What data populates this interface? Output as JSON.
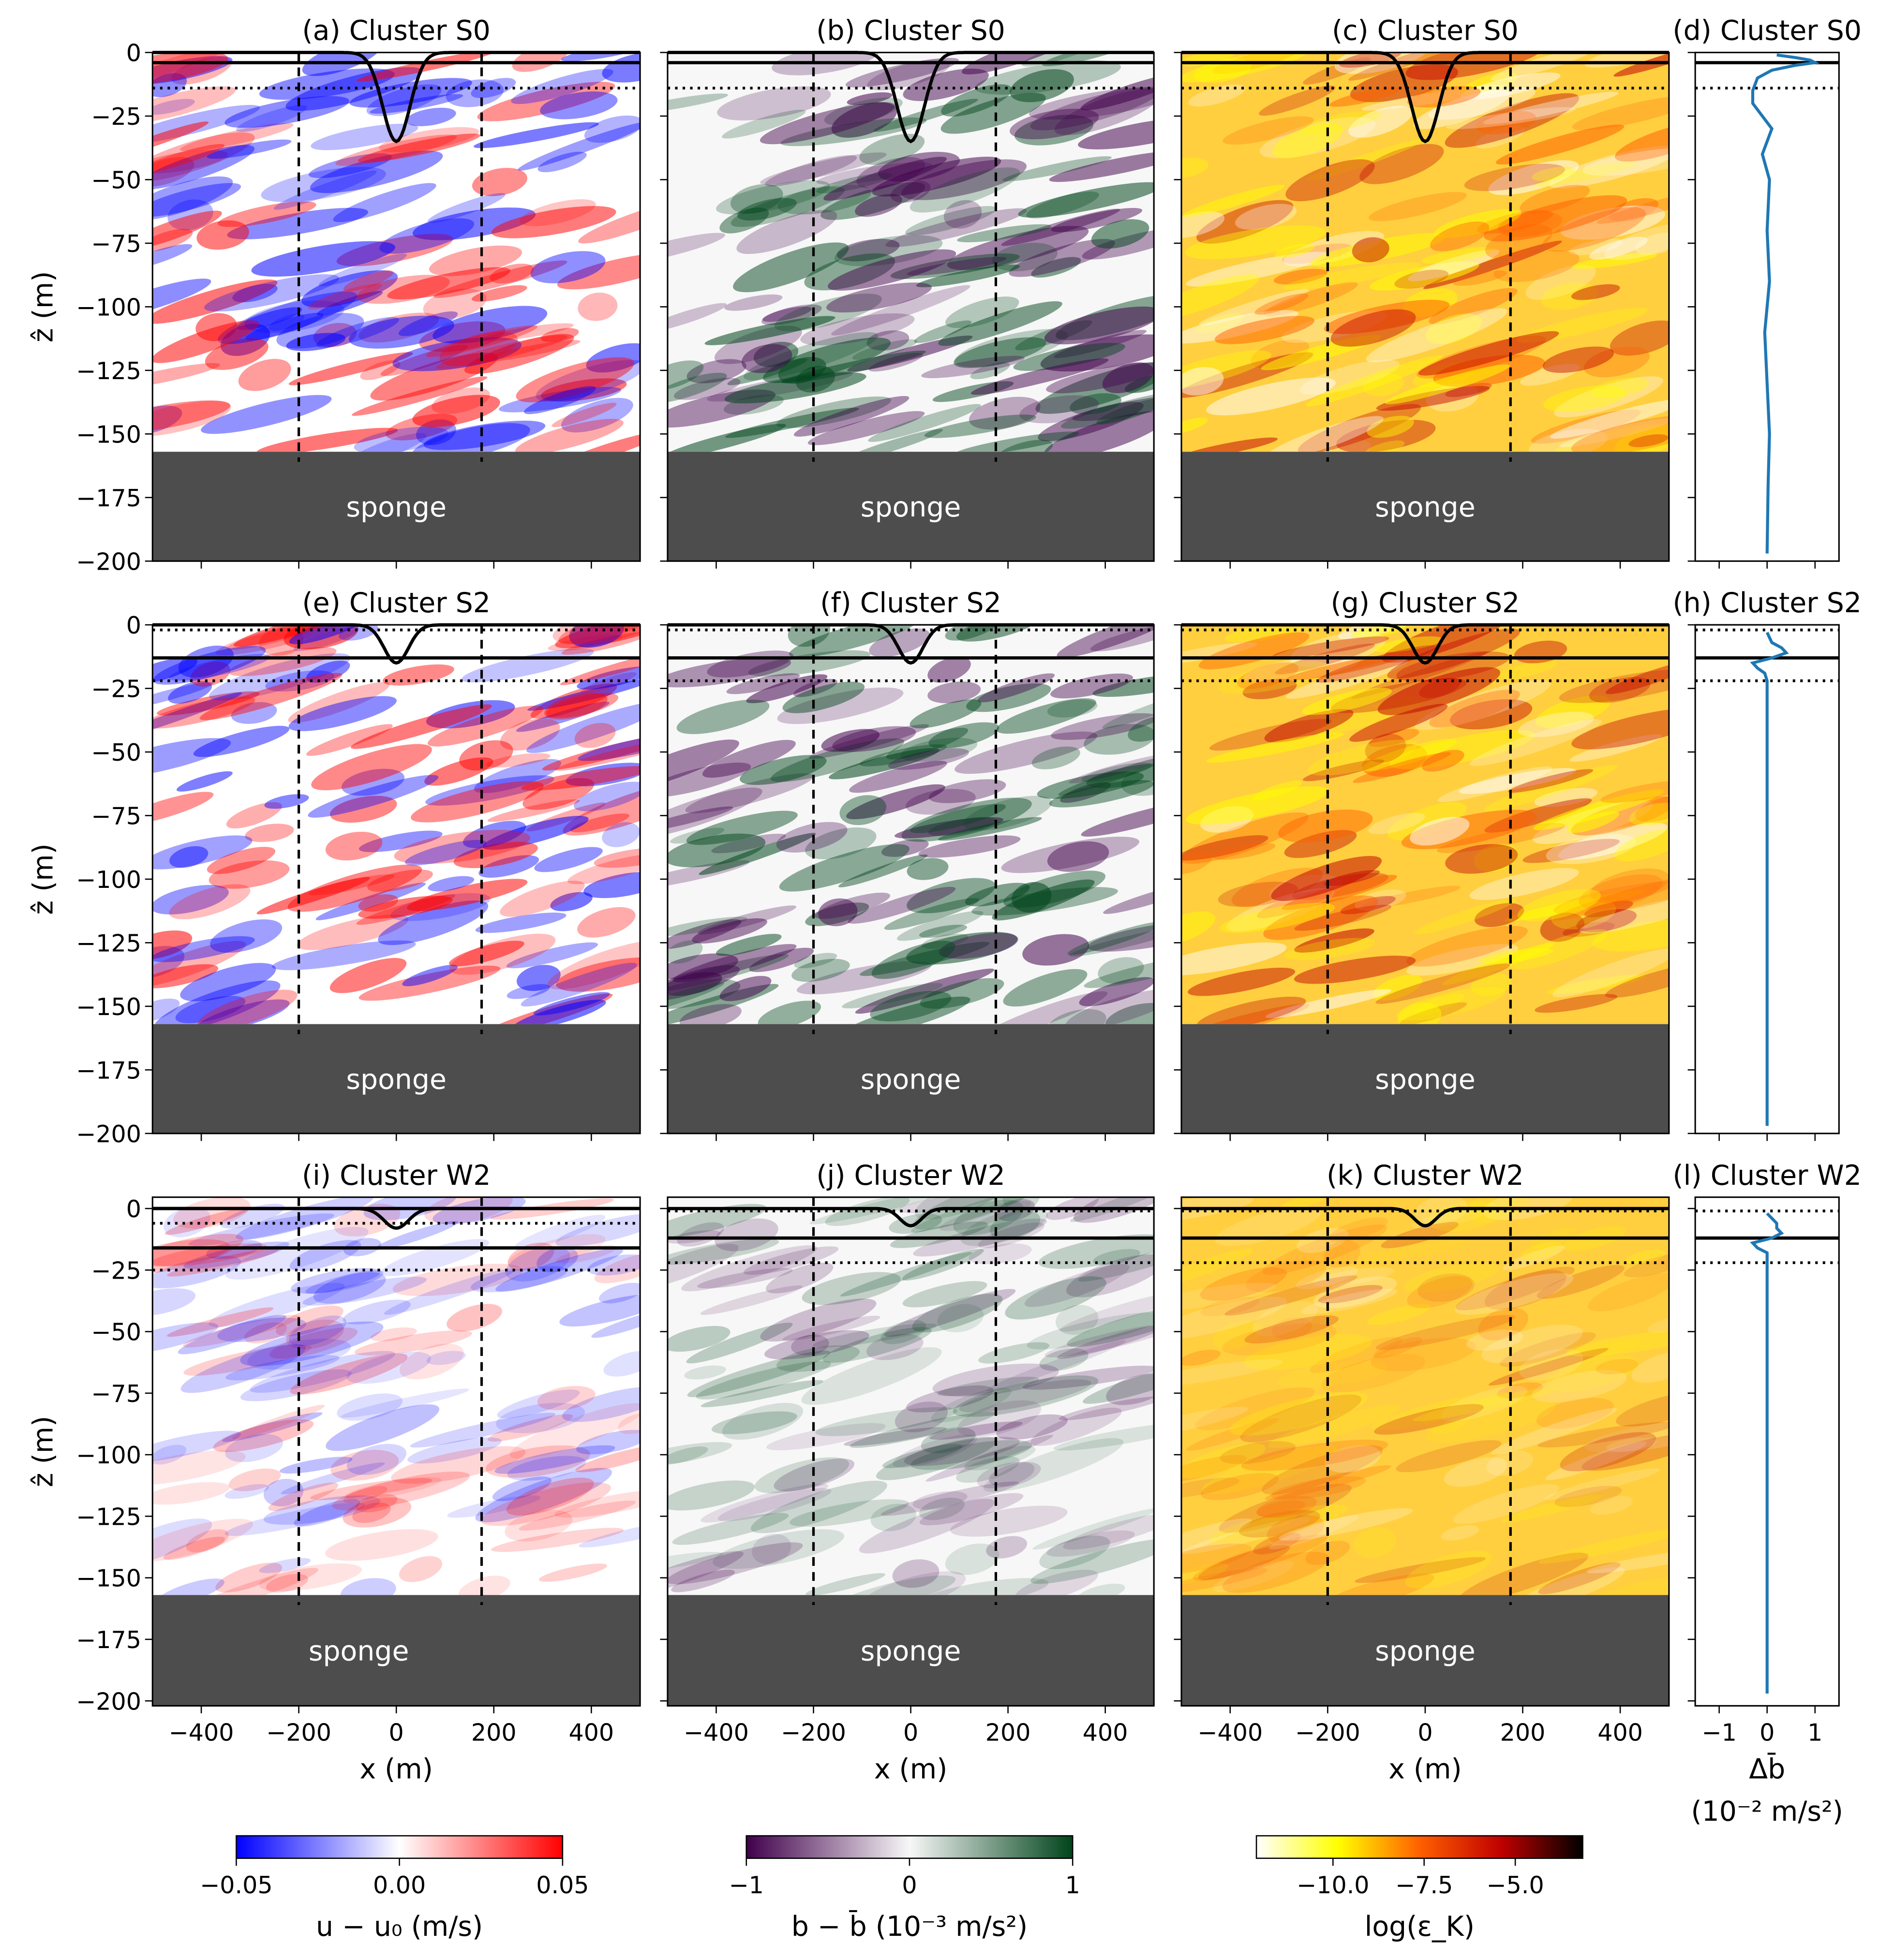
{
  "chart_data": [
    {
      "type": "heatmap",
      "title": "(a) Cluster S0",
      "colors": [
        "#0000ff",
        "#ffffff",
        "#ff0000"
      ],
      "xlim": [
        -500,
        500
      ],
      "ylim": [
        -200,
        0
      ],
      "xticks": [
        -400,
        -200,
        0,
        200,
        400
      ],
      "yticks": [
        0,
        {
          "value": -25,
          "label": "−25"
        },
        {
          "value": -50,
          "label": "−50"
        },
        {
          "value": -75,
          "label": "−75"
        },
        {
          "value": -100,
          "label": "−100"
        },
        {
          "value": -125,
          "label": "−125"
        },
        {
          "value": -150,
          "label": "−150"
        },
        {
          "value": -175,
          "label": "−175"
        },
        {
          "value": -200,
          "label": "−200"
        }
      ],
      "show_xtick_labels": false,
      "show_ytick_labels": true,
      "ylabel": "ẑ (m)",
      "surface": {
        "depth": -35,
        "width": 28,
        "level": 0
      },
      "hlines_solid": [
        -4
      ],
      "hlines_dotted": [
        -14
      ],
      "vlines": [
        -200,
        175
      ],
      "sponge_top": -157,
      "sponge_label": "sponge"
    },
    {
      "type": "heatmap",
      "title": "(b) Cluster S0",
      "colors": [
        "#40004b",
        "#f7f7f7",
        "#00441b"
      ],
      "xlim": [
        -500,
        500
      ],
      "ylim": [
        -200,
        0
      ],
      "xticks": [
        -400,
        -200,
        0,
        200,
        400
      ],
      "yticks": [
        0,
        -25,
        -50,
        -75,
        -100,
        -125,
        -150,
        -175,
        -200
      ],
      "show_xtick_labels": false,
      "show_ytick_labels": false,
      "surface": {
        "depth": -35,
        "width": 28,
        "level": 0
      },
      "hlines_solid": [
        -4
      ],
      "hlines_dotted": [
        -14
      ],
      "vlines": [
        -200,
        175
      ],
      "sponge_top": -157,
      "sponge_label": "sponge"
    },
    {
      "type": "heatmap",
      "title": "(c) Cluster S0",
      "colors": [
        "#ffffff",
        "#ffff00",
        "#ff6000",
        "#c00000",
        "#000000"
      ],
      "xlim": [
        -500,
        500
      ],
      "ylim": [
        -200,
        0
      ],
      "xticks": [
        -400,
        -200,
        0,
        200,
        400
      ],
      "yticks": [
        0,
        -25,
        -50,
        -75,
        -100,
        -125,
        -150,
        -175,
        -200
      ],
      "show_xtick_labels": false,
      "show_ytick_labels": false,
      "surface": {
        "depth": -35,
        "width": 28,
        "level": 0
      },
      "hlines_solid": [
        -4
      ],
      "hlines_dotted": [
        -14
      ],
      "vlines": [
        -200,
        175
      ],
      "sponge_top": -157,
      "sponge_label": "sponge"
    },
    {
      "type": "line",
      "title": "(d) Cluster S0",
      "color": "#1f77b4",
      "xlim": [
        -1.5,
        1.5
      ],
      "ylim": [
        -200,
        0
      ],
      "xticks": [
        -1,
        0,
        1
      ],
      "yticks": [
        0,
        -25,
        -50,
        -75,
        -100,
        -125,
        -150,
        -175,
        -200
      ],
      "show_xtick_labels": false,
      "hlines_solid": [
        -4
      ],
      "hlines_dotted": [
        -14
      ],
      "z": [
        -1,
        -2,
        -3,
        -4,
        -5,
        -7,
        -10,
        -15,
        -20,
        -25,
        -30,
        -40,
        -50,
        -70,
        -90,
        -110,
        -130,
        -150,
        -170,
        -197
      ],
      "values": [
        0.2,
        0.6,
        0.9,
        1.0,
        0.6,
        0.1,
        -0.2,
        -0.3,
        -0.3,
        -0.1,
        0.1,
        -0.1,
        0.05,
        0.0,
        0.05,
        -0.05,
        0.0,
        0.05,
        0.02,
        0.0
      ]
    },
    {
      "type": "heatmap",
      "title": "(e) Cluster S2",
      "colors": [
        "#0000ff",
        "#ffffff",
        "#ff0000"
      ],
      "xlim": [
        -500,
        500
      ],
      "ylim": [
        -200,
        0
      ],
      "xticks": [
        -400,
        -200,
        0,
        200,
        400
      ],
      "yticks": [
        0,
        {
          "value": -25,
          "label": "−25"
        },
        {
          "value": -50,
          "label": "−50"
        },
        {
          "value": -75,
          "label": "−75"
        },
        {
          "value": -100,
          "label": "−100"
        },
        {
          "value": -125,
          "label": "−125"
        },
        {
          "value": -150,
          "label": "−150"
        },
        {
          "value": -175,
          "label": "−175"
        },
        {
          "value": -200,
          "label": "−200"
        }
      ],
      "show_xtick_labels": false,
      "show_ytick_labels": true,
      "ylabel": "ẑ (m)",
      "surface": {
        "depth": -15,
        "width": 25,
        "level": 0
      },
      "hlines_solid": [
        -13
      ],
      "hlines_dotted": [
        -2,
        -22
      ],
      "vlines": [
        -200,
        175
      ],
      "sponge_top": -157,
      "sponge_label": "sponge"
    },
    {
      "type": "heatmap",
      "title": "(f) Cluster S2",
      "colors": [
        "#40004b",
        "#f7f7f7",
        "#00441b"
      ],
      "xlim": [
        -500,
        500
      ],
      "ylim": [
        -200,
        0
      ],
      "xticks": [
        -400,
        -200,
        0,
        200,
        400
      ],
      "yticks": [
        0,
        -25,
        -50,
        -75,
        -100,
        -125,
        -150,
        -175,
        -200
      ],
      "show_xtick_labels": false,
      "show_ytick_labels": false,
      "surface": {
        "depth": -15,
        "width": 25,
        "level": 0
      },
      "hlines_solid": [
        -13
      ],
      "hlines_dotted": [
        -2,
        -22
      ],
      "vlines": [
        -200,
        175
      ],
      "sponge_top": -157,
      "sponge_label": "sponge"
    },
    {
      "type": "heatmap",
      "title": "(g) Cluster S2",
      "colors": [
        "#ffffff",
        "#ffff00",
        "#ff6000",
        "#c00000",
        "#000000"
      ],
      "xlim": [
        -500,
        500
      ],
      "ylim": [
        -200,
        0
      ],
      "xticks": [
        -400,
        -200,
        0,
        200,
        400
      ],
      "yticks": [
        0,
        -25,
        -50,
        -75,
        -100,
        -125,
        -150,
        -175,
        -200
      ],
      "show_xtick_labels": false,
      "show_ytick_labels": false,
      "surface": {
        "depth": -15,
        "width": 25,
        "level": 0
      },
      "hlines_solid": [
        -13
      ],
      "hlines_dotted": [
        -2,
        -22
      ],
      "vlines": [
        -200,
        175
      ],
      "sponge_top": -157,
      "sponge_label": "sponge"
    },
    {
      "type": "line",
      "title": "(h) Cluster S2",
      "color": "#1f77b4",
      "xlim": [
        -1.5,
        1.5
      ],
      "ylim": [
        -200,
        0
      ],
      "xticks": [
        -1,
        0,
        1
      ],
      "yticks": [
        0,
        -25,
        -50,
        -75,
        -100,
        -125,
        -150,
        -175,
        -200
      ],
      "show_xtick_labels": false,
      "hlines_solid": [
        -13
      ],
      "hlines_dotted": [
        -2,
        -22
      ],
      "z": [
        -3,
        -5,
        -7,
        -9,
        -11,
        -13,
        -15,
        -17,
        -19,
        -22,
        -30,
        -60,
        -100,
        -150,
        -197
      ],
      "values": [
        0.0,
        0.05,
        0.1,
        0.3,
        0.4,
        0.1,
        -0.3,
        -0.2,
        -0.05,
        0.0,
        0.0,
        0.0,
        0.0,
        0.0,
        0.0
      ]
    },
    {
      "type": "heatmap",
      "title": "(i) Cluster W2",
      "colors": [
        "#0000ff",
        "#ffffff",
        "#ff0000"
      ],
      "xlim": [
        -500,
        500
      ],
      "ylim": [
        -202,
        4.6
      ],
      "xticks": [
        {
          "value": -400,
          "label": "−400"
        },
        {
          "value": -200,
          "label": "−200"
        },
        0,
        200,
        400
      ],
      "yticks": [
        0,
        {
          "value": -25,
          "label": "−25"
        },
        {
          "value": -50,
          "label": "−50"
        },
        {
          "value": -75,
          "label": "−75"
        },
        {
          "value": -100,
          "label": "−100"
        },
        {
          "value": -125,
          "label": "−125"
        },
        {
          "value": -150,
          "label": "−150"
        },
        {
          "value": -175,
          "label": "−175"
        },
        {
          "value": -200,
          "label": "−200"
        }
      ],
      "show_xtick_labels": true,
      "show_ytick_labels": true,
      "xlabel": "x (m)",
      "ylabel": "ẑ (m)",
      "surface": {
        "depth": -8,
        "width": 25,
        "level": 0
      },
      "hlines_solid": [
        0,
        -16
      ],
      "hlines_dotted": [
        -6,
        -25
      ],
      "vlines": [
        -200,
        175
      ],
      "sponge_top": -157,
      "sponge_label": "sponge"
    },
    {
      "type": "heatmap",
      "title": "(j) Cluster W2",
      "colors": [
        "#40004b",
        "#f7f7f7",
        "#00441b"
      ],
      "xlim": [
        -500,
        500
      ],
      "ylim": [
        -202,
        4.6
      ],
      "xticks": [
        {
          "value": -400,
          "label": "−400"
        },
        {
          "value": -200,
          "label": "−200"
        },
        0,
        200,
        400
      ],
      "yticks": [
        0,
        -25,
        -50,
        -75,
        -100,
        -125,
        -150,
        -175,
        -200
      ],
      "show_xtick_labels": true,
      "show_ytick_labels": false,
      "xlabel": "x (m)",
      "surface": {
        "depth": -7,
        "width": 22,
        "level": 0
      },
      "hlines_solid": [
        -12
      ],
      "hlines_dotted": [
        -1,
        -22
      ],
      "vlines": [
        -200,
        175
      ],
      "sponge_top": -157,
      "sponge_label": "sponge"
    },
    {
      "type": "heatmap",
      "title": "(k) Cluster W2",
      "colors": [
        "#ffffff",
        "#ffff00",
        "#ff6000",
        "#c00000",
        "#000000"
      ],
      "xlim": [
        -500,
        500
      ],
      "ylim": [
        -202,
        4.6
      ],
      "xticks": [
        {
          "value": -400,
          "label": "−400"
        },
        {
          "value": -200,
          "label": "−200"
        },
        0,
        200,
        400
      ],
      "yticks": [
        0,
        -25,
        -50,
        -75,
        -100,
        -125,
        -150,
        -175,
        -200
      ],
      "show_xtick_labels": true,
      "show_ytick_labels": false,
      "xlabel": "x (m)",
      "surface": {
        "depth": -7,
        "width": 22,
        "level": 0
      },
      "hlines_solid": [
        -12
      ],
      "hlines_dotted": [
        -1,
        -22
      ],
      "vlines": [
        -200,
        175
      ],
      "sponge_top": -157,
      "sponge_label": "sponge"
    },
    {
      "type": "line",
      "title": "(l) Cluster W2",
      "color": "#1f77b4",
      "xlim": [
        -1.5,
        1.5
      ],
      "ylim": [
        -202,
        4.6
      ],
      "xticks": [
        {
          "value": -1,
          "label": "−1"
        },
        0,
        1
      ],
      "yticks": [
        0,
        -25,
        -50,
        -75,
        -100,
        -125,
        -150,
        -175,
        -200
      ],
      "show_xtick_labels": true,
      "xlabel": "Δb̄",
      "xlabel2": "(10⁻² m/s²)",
      "hlines_solid": [
        -12
      ],
      "hlines_dotted": [
        -1,
        -22
      ],
      "z": [
        -2,
        -4,
        -6,
        -8,
        -10,
        -12,
        -14,
        -16,
        -18,
        -22,
        -30,
        -60,
        -100,
        -150,
        -197
      ],
      "values": [
        0.0,
        0.1,
        0.2,
        0.2,
        0.3,
        0.1,
        -0.3,
        -0.2,
        0.0,
        0.0,
        0.0,
        0.0,
        0.0,
        0.0,
        0.0
      ]
    },
    {
      "type": "colorbar",
      "label": "u − u₀ (m/s)",
      "colors": [
        "#0000ff",
        "#ffffff",
        "#ff0000"
      ],
      "lim": [
        -0.05,
        0.05
      ],
      "ticks": [
        {
          "value": -0.05,
          "label": "−0.05"
        },
        {
          "value": 0,
          "label": "0.00"
        },
        0.05
      ]
    },
    {
      "type": "colorbar",
      "label": "b − b̄ (10⁻³ m/s²)",
      "colors": [
        "#40004b",
        "#f7f7f7",
        "#00441b"
      ],
      "lim": [
        -1,
        1
      ],
      "ticks": [
        {
          "value": -1,
          "label": "−1"
        },
        0,
        1
      ]
    },
    {
      "type": "colorbar",
      "label": "log(ε_K)",
      "colors": [
        "#ffffff",
        "#ffff00",
        "#ff6000",
        "#c00000",
        "#000000"
      ],
      "lim": [
        -12.1,
        -3.15
      ],
      "ticks": [
        {
          "value": -10,
          "label": "−10.0"
        },
        {
          "value": -7.5,
          "label": "−7.5"
        },
        {
          "value": -5,
          "label": "−5.0"
        }
      ]
    }
  ]
}
